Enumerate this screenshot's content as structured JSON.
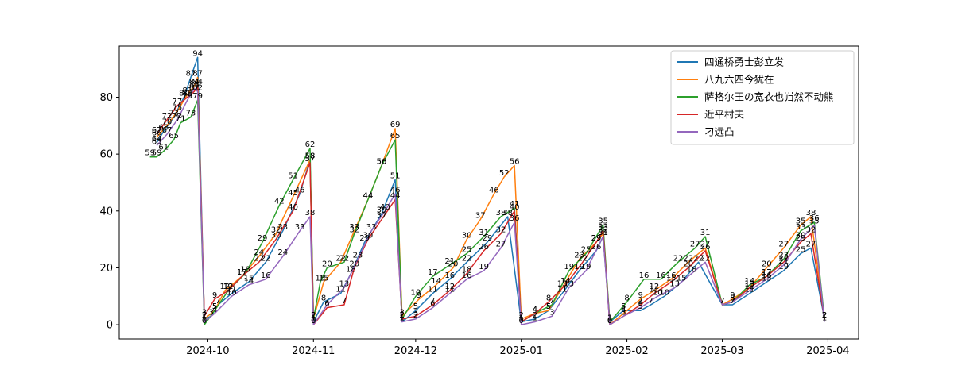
{
  "chart_data": {
    "type": "line",
    "title": "",
    "xlabel": "",
    "ylabel": "",
    "x_ticks": [
      "2024-10",
      "2024-11",
      "2024-12",
      "2025-01",
      "2025-02",
      "2025-03",
      "2025-04"
    ],
    "y_ticks": [
      "0",
      "20",
      "40",
      "60",
      "80"
    ],
    "ylim": [
      -5,
      98
    ],
    "xlim": [
      "2024-09-05",
      "2025-04-10"
    ],
    "legend_position": "upper right",
    "grid": false,
    "series": [
      {
        "name": "四通桥勇士彭立发",
        "color": "#1f77b4",
        "points": [
          [
            "2024-09-16",
            64
          ],
          [
            "2024-09-18",
            68
          ],
          [
            "2024-09-21",
            73
          ],
          [
            "2024-09-24",
            80
          ],
          [
            "2024-09-26",
            87
          ],
          [
            "2024-09-28",
            94
          ],
          [
            "2024-09-30",
            2
          ],
          [
            "2024-10-02",
            3
          ],
          [
            "2024-10-04",
            7
          ],
          [
            "2024-10-08",
            11
          ],
          [
            "2024-10-13",
            15
          ],
          [
            "2024-10-18",
            22
          ],
          [
            "2024-10-23",
            33
          ],
          [
            "2024-10-28",
            46
          ],
          [
            "2024-10-31",
            58
          ],
          [
            "2024-11-01",
            1
          ],
          [
            "2024-11-04",
            8
          ],
          [
            "2024-11-09",
            11
          ],
          [
            "2024-11-12",
            18
          ],
          [
            "2024-11-16",
            29
          ],
          [
            "2024-11-21",
            39
          ],
          [
            "2024-11-25",
            51
          ],
          [
            "2024-11-27",
            1
          ],
          [
            "2024-12-01",
            5
          ],
          [
            "2024-12-06",
            11
          ],
          [
            "2024-12-11",
            16
          ],
          [
            "2024-12-16",
            22
          ],
          [
            "2024-12-22",
            29
          ],
          [
            "2024-12-28",
            38
          ],
          [
            "2025-01-01",
            1
          ],
          [
            "2025-01-05",
            2
          ],
          [
            "2025-01-09",
            5
          ],
          [
            "2025-01-13",
            11
          ],
          [
            "2025-01-18",
            19
          ],
          [
            "2025-01-23",
            26
          ],
          [
            "2025-01-25",
            31
          ],
          [
            "2025-01-27",
            1
          ],
          [
            "2025-01-31",
            5
          ],
          [
            "2025-02-05",
            5
          ],
          [
            "2025-02-08",
            7
          ],
          [
            "2025-02-12",
            10
          ],
          [
            "2025-02-17",
            15
          ],
          [
            "2025-02-22",
            22
          ],
          [
            "2025-03-01",
            7
          ],
          [
            "2025-03-04",
            7
          ],
          [
            "2025-03-09",
            11
          ],
          [
            "2025-03-14",
            15
          ],
          [
            "2025-03-19",
            19
          ],
          [
            "2025-03-24",
            25
          ],
          [
            "2025-03-27",
            27
          ],
          [
            "2025-03-31",
            2
          ]
        ]
      },
      {
        "name": "八九六四今犹在",
        "color": "#ff7f0e",
        "points": [
          [
            "2024-09-16",
            66
          ],
          [
            "2024-09-19",
            70
          ],
          [
            "2024-09-22",
            75
          ],
          [
            "2024-09-25",
            81
          ],
          [
            "2024-09-27",
            84
          ],
          [
            "2024-09-28",
            87
          ],
          [
            "2024-09-30",
            2
          ],
          [
            "2024-10-03",
            5
          ],
          [
            "2024-10-06",
            12
          ],
          [
            "2024-10-11",
            17
          ],
          [
            "2024-10-16",
            24
          ],
          [
            "2024-10-21",
            32
          ],
          [
            "2024-10-26",
            45
          ],
          [
            "2024-10-31",
            58
          ],
          [
            "2024-11-01",
            2
          ],
          [
            "2024-11-04",
            15
          ],
          [
            "2024-11-09",
            22
          ],
          [
            "2024-11-13",
            33
          ],
          [
            "2024-11-17",
            44
          ],
          [
            "2024-11-21",
            56
          ],
          [
            "2024-11-25",
            69
          ],
          [
            "2024-11-27",
            3
          ],
          [
            "2024-12-02",
            9
          ],
          [
            "2024-12-07",
            14
          ],
          [
            "2024-12-12",
            20
          ],
          [
            "2024-12-16",
            30
          ],
          [
            "2024-12-20",
            37
          ],
          [
            "2024-12-24",
            46
          ],
          [
            "2024-12-27",
            52
          ],
          [
            "2024-12-30",
            56
          ],
          [
            "2025-01-01",
            2
          ],
          [
            "2025-01-05",
            4
          ],
          [
            "2025-01-09",
            5
          ],
          [
            "2025-01-13",
            13
          ],
          [
            "2025-01-18",
            23
          ],
          [
            "2025-01-23",
            29
          ],
          [
            "2025-01-25",
            32
          ],
          [
            "2025-01-27",
            0
          ],
          [
            "2025-01-31",
            4
          ],
          [
            "2025-02-05",
            9
          ],
          [
            "2025-02-09",
            12
          ],
          [
            "2025-02-14",
            16
          ],
          [
            "2025-02-19",
            22
          ],
          [
            "2025-02-24",
            27
          ],
          [
            "2025-03-01",
            7
          ],
          [
            "2025-03-04",
            9
          ],
          [
            "2025-03-09",
            13
          ],
          [
            "2025-03-14",
            20
          ],
          [
            "2025-03-19",
            27
          ],
          [
            "2025-03-24",
            35
          ],
          [
            "2025-03-27",
            38
          ],
          [
            "2025-03-31",
            2
          ]
        ]
      },
      {
        "name": "萨格尔王の宽衣也岿然不动熊",
        "color": "#2ca02c",
        "points": [
          [
            "2024-09-14",
            59
          ],
          [
            "2024-09-16",
            59
          ],
          [
            "2024-09-18",
            61
          ],
          [
            "2024-09-21",
            65
          ],
          [
            "2024-09-23",
            71
          ],
          [
            "2024-09-26",
            73
          ],
          [
            "2024-09-28",
            79
          ],
          [
            "2024-09-30",
            0
          ],
          [
            "2024-10-03",
            5
          ],
          [
            "2024-10-07",
            12
          ],
          [
            "2024-10-12",
            18
          ],
          [
            "2024-10-17",
            29
          ],
          [
            "2024-10-22",
            42
          ],
          [
            "2024-10-26",
            51
          ],
          [
            "2024-10-31",
            62
          ],
          [
            "2024-11-01",
            2
          ],
          [
            "2024-11-03",
            15
          ],
          [
            "2024-11-05",
            20
          ],
          [
            "2024-11-10",
            22
          ],
          [
            "2024-11-13",
            32
          ],
          [
            "2024-11-17",
            44
          ],
          [
            "2024-11-21",
            56
          ],
          [
            "2024-11-25",
            65
          ],
          [
            "2024-11-27",
            2
          ],
          [
            "2024-12-01",
            10
          ],
          [
            "2024-12-06",
            17
          ],
          [
            "2024-12-11",
            21
          ],
          [
            "2024-12-16",
            25
          ],
          [
            "2024-12-21",
            31
          ],
          [
            "2024-12-26",
            38
          ],
          [
            "2024-12-30",
            41
          ],
          [
            "2025-01-01",
            1
          ],
          [
            "2025-01-05",
            4
          ],
          [
            "2025-01-10",
            7
          ],
          [
            "2025-01-15",
            19
          ],
          [
            "2025-01-20",
            25
          ],
          [
            "2025-01-25",
            35
          ],
          [
            "2025-01-27",
            1
          ],
          [
            "2025-02-01",
            8
          ],
          [
            "2025-02-06",
            16
          ],
          [
            "2025-02-11",
            16
          ],
          [
            "2025-02-16",
            22
          ],
          [
            "2025-02-21",
            27
          ],
          [
            "2025-02-24",
            31
          ],
          [
            "2025-03-01",
            7
          ],
          [
            "2025-03-04",
            8
          ],
          [
            "2025-03-09",
            14
          ],
          [
            "2025-03-14",
            17
          ],
          [
            "2025-03-19",
            23
          ],
          [
            "2025-03-24",
            33
          ],
          [
            "2025-03-28",
            36
          ],
          [
            "2025-03-31",
            2
          ]
        ]
      },
      {
        "name": "近平村夫",
        "color": "#d62728",
        "points": [
          [
            "2024-09-16",
            67
          ],
          [
            "2024-09-19",
            72
          ],
          [
            "2024-09-22",
            77
          ],
          [
            "2024-09-25",
            80
          ],
          [
            "2024-09-27",
            82
          ],
          [
            "2024-09-28",
            84
          ],
          [
            "2024-09-30",
            3
          ],
          [
            "2024-10-03",
            9
          ],
          [
            "2024-10-07",
            12
          ],
          [
            "2024-10-11",
            17
          ],
          [
            "2024-10-16",
            22
          ],
          [
            "2024-10-21",
            30
          ],
          [
            "2024-10-26",
            40
          ],
          [
            "2024-10-31",
            57
          ],
          [
            "2024-11-01",
            0
          ],
          [
            "2024-11-05",
            6
          ],
          [
            "2024-11-10",
            7
          ],
          [
            "2024-11-13",
            20
          ],
          [
            "2024-11-17",
            30
          ],
          [
            "2024-11-21",
            37
          ],
          [
            "2024-11-25",
            44
          ],
          [
            "2024-11-27",
            2
          ],
          [
            "2024-12-01",
            3
          ],
          [
            "2024-12-06",
            7
          ],
          [
            "2024-12-11",
            12
          ],
          [
            "2024-12-16",
            18
          ],
          [
            "2024-12-21",
            26
          ],
          [
            "2024-12-26",
            32
          ],
          [
            "2024-12-30",
            40
          ],
          [
            "2025-01-01",
            1
          ],
          [
            "2025-01-05",
            4
          ],
          [
            "2025-01-09",
            8
          ],
          [
            "2025-01-14",
            14
          ],
          [
            "2025-01-19",
            22
          ],
          [
            "2025-01-23",
            29
          ],
          [
            "2025-01-25",
            33
          ],
          [
            "2025-01-27",
            0
          ],
          [
            "2025-01-31",
            3
          ],
          [
            "2025-02-05",
            7
          ],
          [
            "2025-02-09",
            11
          ],
          [
            "2025-02-14",
            15
          ],
          [
            "2025-02-19",
            20
          ],
          [
            "2025-02-24",
            26
          ],
          [
            "2025-03-01",
            7
          ],
          [
            "2025-03-04",
            8
          ],
          [
            "2025-03-09",
            13
          ],
          [
            "2025-03-14",
            17
          ],
          [
            "2025-03-19",
            22
          ],
          [
            "2025-03-24",
            29
          ],
          [
            "2025-03-27",
            32
          ],
          [
            "2025-03-31",
            2
          ]
        ]
      },
      {
        "name": "刁远凸",
        "color": "#9467bd",
        "points": [
          [
            "2024-09-16",
            63
          ],
          [
            "2024-09-19",
            67
          ],
          [
            "2024-09-22",
            72
          ],
          [
            "2024-09-25",
            79
          ],
          [
            "2024-09-27",
            83
          ],
          [
            "2024-09-28",
            82
          ],
          [
            "2024-09-30",
            1
          ],
          [
            "2024-10-03",
            4
          ],
          [
            "2024-10-08",
            10
          ],
          [
            "2024-10-13",
            14
          ],
          [
            "2024-10-18",
            16
          ],
          [
            "2024-10-23",
            24
          ],
          [
            "2024-10-28",
            33
          ],
          [
            "2024-10-31",
            38
          ],
          [
            "2024-11-01",
            0
          ],
          [
            "2024-11-05",
            7
          ],
          [
            "2024-11-10",
            13
          ],
          [
            "2024-11-14",
            23
          ],
          [
            "2024-11-18",
            33
          ],
          [
            "2024-11-22",
            40
          ],
          [
            "2024-11-25",
            46
          ],
          [
            "2024-11-27",
            1
          ],
          [
            "2024-12-01",
            2
          ],
          [
            "2024-12-06",
            6
          ],
          [
            "2024-12-11",
            11
          ],
          [
            "2024-12-16",
            16
          ],
          [
            "2024-12-21",
            19
          ],
          [
            "2024-12-26",
            27
          ],
          [
            "2024-12-30",
            36
          ],
          [
            "2025-01-01",
            0
          ],
          [
            "2025-01-05",
            1
          ],
          [
            "2025-01-10",
            3
          ],
          [
            "2025-01-15",
            13
          ],
          [
            "2025-01-20",
            19
          ],
          [
            "2025-01-25",
            31
          ],
          [
            "2025-01-27",
            0
          ],
          [
            "2025-01-31",
            3
          ],
          [
            "2025-02-05",
            6
          ],
          [
            "2025-02-10",
            10
          ],
          [
            "2025-02-15",
            13
          ],
          [
            "2025-02-20",
            18
          ],
          [
            "2025-02-24",
            22
          ],
          [
            "2025-03-01",
            7
          ],
          [
            "2025-03-04",
            8
          ],
          [
            "2025-03-09",
            12
          ],
          [
            "2025-03-14",
            16
          ],
          [
            "2025-03-19",
            21
          ],
          [
            "2025-03-24",
            30
          ],
          [
            "2025-03-28",
            35
          ],
          [
            "2025-03-31",
            1
          ]
        ]
      }
    ]
  }
}
